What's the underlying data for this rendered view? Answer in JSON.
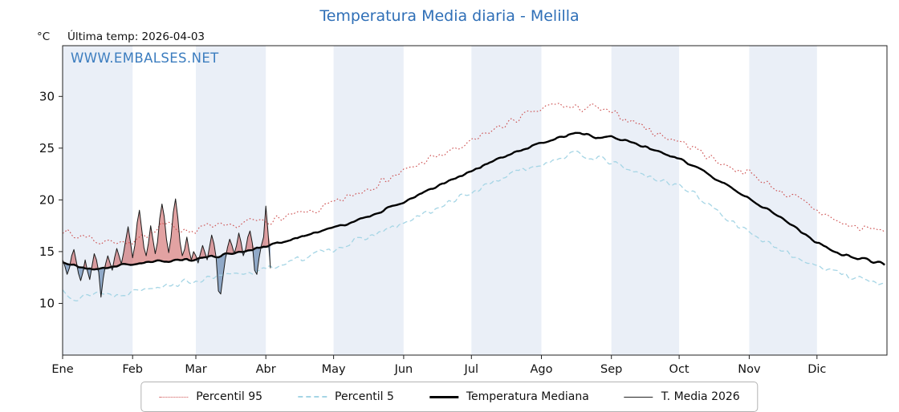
{
  "chart_data": {
    "type": "line",
    "title": "Temperatura Media diaria - Melilla",
    "watermark": "WWW.EMBALSES.NET",
    "unit": "°C",
    "last_temp_label": "Última temp: 2026-04-03",
    "x_months": [
      "Ene",
      "Feb",
      "Mar",
      "Abr",
      "May",
      "Jun",
      "Jul",
      "Ago",
      "Sep",
      "Oct",
      "Nov",
      "Dic"
    ],
    "month_start_days": [
      1,
      32,
      60,
      91,
      121,
      152,
      182,
      213,
      244,
      274,
      305,
      335
    ],
    "days_in_year": 365,
    "y_ticks": [
      10,
      15,
      20,
      25,
      30
    ],
    "ylim": [
      5,
      34.9
    ],
    "grid": false,
    "band_color": "#eaeff7",
    "fills": {
      "above_color": "rgba(197,70,70,0.5)",
      "below_color": "rgba(95,130,175,0.65)"
    },
    "series": [
      {
        "name": "Percentil 95",
        "style": "dotted",
        "color": "#cc4c4c",
        "width": 1.1,
        "noise": 0.55,
        "seed": 7,
        "anchors": [
          [
            1,
            17.3
          ],
          [
            6,
            16.4
          ],
          [
            12,
            16.6
          ],
          [
            18,
            15.8
          ],
          [
            24,
            16.2
          ],
          [
            32,
            15.6
          ],
          [
            38,
            16.6
          ],
          [
            45,
            17.8
          ],
          [
            52,
            17.2
          ],
          [
            60,
            17.0
          ],
          [
            66,
            17.5
          ],
          [
            74,
            17.2
          ],
          [
            82,
            17.8
          ],
          [
            91,
            18.0
          ],
          [
            98,
            18.2
          ],
          [
            106,
            18.6
          ],
          [
            114,
            19.0
          ],
          [
            121,
            19.6
          ],
          [
            130,
            20.5
          ],
          [
            140,
            21.6
          ],
          [
            152,
            22.7
          ],
          [
            162,
            23.8
          ],
          [
            172,
            24.6
          ],
          [
            182,
            25.5
          ],
          [
            192,
            26.8
          ],
          [
            202,
            27.8
          ],
          [
            213,
            28.7
          ],
          [
            220,
            29.3
          ],
          [
            227,
            28.8
          ],
          [
            235,
            29.0
          ],
          [
            244,
            28.3
          ],
          [
            254,
            27.6
          ],
          [
            264,
            26.4
          ],
          [
            274,
            25.7
          ],
          [
            284,
            24.6
          ],
          [
            294,
            23.4
          ],
          [
            305,
            22.6
          ],
          [
            315,
            21.3
          ],
          [
            325,
            20.2
          ],
          [
            335,
            19.0
          ],
          [
            345,
            17.8
          ],
          [
            355,
            17.2
          ],
          [
            365,
            17.1
          ]
        ]
      },
      {
        "name": "Percentil 5",
        "style": "dashed",
        "color": "#a5d5e5",
        "width": 1.3,
        "noise": 0.4,
        "seed": 13,
        "anchors": [
          [
            1,
            11.3
          ],
          [
            8,
            10.4
          ],
          [
            16,
            11.1
          ],
          [
            24,
            10.8
          ],
          [
            32,
            11.2
          ],
          [
            42,
            11.7
          ],
          [
            52,
            11.9
          ],
          [
            60,
            12.2
          ],
          [
            70,
            12.5
          ],
          [
            80,
            12.9
          ],
          [
            91,
            13.3
          ],
          [
            101,
            14.0
          ],
          [
            111,
            14.6
          ],
          [
            121,
            15.3
          ],
          [
            131,
            16.0
          ],
          [
            141,
            16.8
          ],
          [
            152,
            17.7
          ],
          [
            162,
            18.7
          ],
          [
            172,
            19.7
          ],
          [
            182,
            20.7
          ],
          [
            192,
            21.8
          ],
          [
            202,
            22.7
          ],
          [
            213,
            23.5
          ],
          [
            222,
            24.2
          ],
          [
            230,
            24.4
          ],
          [
            238,
            24.0
          ],
          [
            244,
            23.6
          ],
          [
            254,
            22.7
          ],
          [
            264,
            22.0
          ],
          [
            274,
            21.4
          ],
          [
            282,
            20.4
          ],
          [
            290,
            19.0
          ],
          [
            298,
            17.9
          ],
          [
            305,
            16.9
          ],
          [
            315,
            15.5
          ],
          [
            325,
            14.5
          ],
          [
            335,
            13.7
          ],
          [
            345,
            12.9
          ],
          [
            355,
            12.4
          ],
          [
            365,
            11.7
          ]
        ]
      },
      {
        "name": "Temperatura Mediana",
        "style": "solid",
        "color": "#000000",
        "width": 2.4,
        "noise": 0.18,
        "seed": 21,
        "anchors": [
          [
            1,
            14.0
          ],
          [
            8,
            13.5
          ],
          [
            16,
            13.3
          ],
          [
            24,
            13.6
          ],
          [
            32,
            13.8
          ],
          [
            42,
            14.0
          ],
          [
            52,
            14.2
          ],
          [
            60,
            14.3
          ],
          [
            70,
            14.6
          ],
          [
            80,
            15.0
          ],
          [
            91,
            15.5
          ],
          [
            101,
            16.1
          ],
          [
            111,
            16.7
          ],
          [
            121,
            17.3
          ],
          [
            131,
            18.0
          ],
          [
            141,
            18.8
          ],
          [
            152,
            19.8
          ],
          [
            162,
            20.8
          ],
          [
            172,
            21.8
          ],
          [
            182,
            22.7
          ],
          [
            192,
            23.8
          ],
          [
            202,
            24.6
          ],
          [
            213,
            25.5
          ],
          [
            222,
            26.1
          ],
          [
            230,
            26.5
          ],
          [
            237,
            26.1
          ],
          [
            244,
            26.2
          ],
          [
            252,
            25.6
          ],
          [
            262,
            24.9
          ],
          [
            274,
            23.9
          ],
          [
            284,
            22.9
          ],
          [
            294,
            21.6
          ],
          [
            305,
            20.1
          ],
          [
            315,
            18.9
          ],
          [
            325,
            17.4
          ],
          [
            335,
            15.9
          ],
          [
            345,
            14.8
          ],
          [
            355,
            14.3
          ],
          [
            365,
            13.8
          ]
        ]
      },
      {
        "name": "T. Media 2026",
        "style": "solid",
        "color": "#1a1a1a",
        "width": 1.0,
        "start_day": 1,
        "daily": [
          14.2,
          13.6,
          12.8,
          13.4,
          14.6,
          15.2,
          14.1,
          12.9,
          12.2,
          13.0,
          14.2,
          13.1,
          12.3,
          13.6,
          14.8,
          14.2,
          13.0,
          10.6,
          12.4,
          13.8,
          14.6,
          13.9,
          13.2,
          14.4,
          15.3,
          14.6,
          13.8,
          14.9,
          16.2,
          17.4,
          16.0,
          14.4,
          15.6,
          17.8,
          19.0,
          17.2,
          15.4,
          14.6,
          15.8,
          17.5,
          16.2,
          14.8,
          15.9,
          18.2,
          19.6,
          18.4,
          16.2,
          14.9,
          16.4,
          18.8,
          20.1,
          18.3,
          15.9,
          14.6,
          15.2,
          16.4,
          15.1,
          14.2,
          15.0,
          14.6,
          13.9,
          14.8,
          15.6,
          14.9,
          14.2,
          15.4,
          16.6,
          15.8,
          14.4,
          11.2,
          10.9,
          12.6,
          14.2,
          15.4,
          16.2,
          15.6,
          14.8,
          15.6,
          16.8,
          15.9,
          14.6,
          15.2,
          16.4,
          17.0,
          15.8,
          13.2,
          12.8,
          14.4,
          15.6,
          16.4,
          19.4,
          16.8,
          13.4
        ]
      }
    ],
    "legend": [
      {
        "label": "Percentil 95",
        "style": "dotted",
        "color": "#cc4c4c",
        "thickness": 1.6
      },
      {
        "label": "Percentil 5",
        "style": "dashed",
        "color": "#a5d5e5",
        "thickness": 2
      },
      {
        "label": "Temperatura Mediana",
        "style": "solid",
        "color": "#000000",
        "thickness": 3
      },
      {
        "label": "T. Media 2026",
        "style": "solid",
        "color": "#222222",
        "thickness": 1.4
      }
    ]
  }
}
